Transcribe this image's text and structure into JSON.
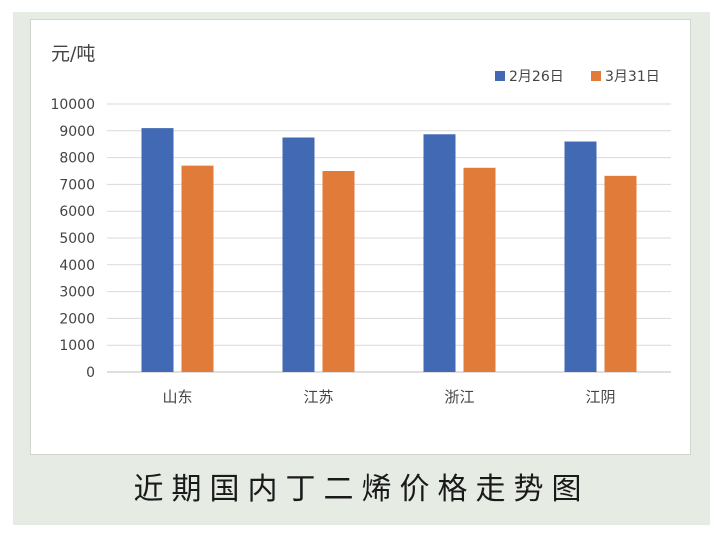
{
  "caption": "近期国内丁二烯价格走势图",
  "chart_data": {
    "type": "bar",
    "unit_label": "元/吨",
    "categories": [
      "山东",
      "江苏",
      "浙江",
      "江阴"
    ],
    "series": [
      {
        "name": "2月26日",
        "color": "#4169b4",
        "values": [
          9100,
          8750,
          8870,
          8600
        ]
      },
      {
        "name": "3月31日",
        "color": "#e07b39",
        "values": [
          7700,
          7500,
          7620,
          7320
        ]
      }
    ],
    "ylim": [
      0,
      10000
    ],
    "yticks": [
      0,
      1000,
      2000,
      3000,
      4000,
      5000,
      6000,
      7000,
      8000,
      9000,
      10000
    ],
    "grid": true,
    "legend_position": "top-right"
  }
}
